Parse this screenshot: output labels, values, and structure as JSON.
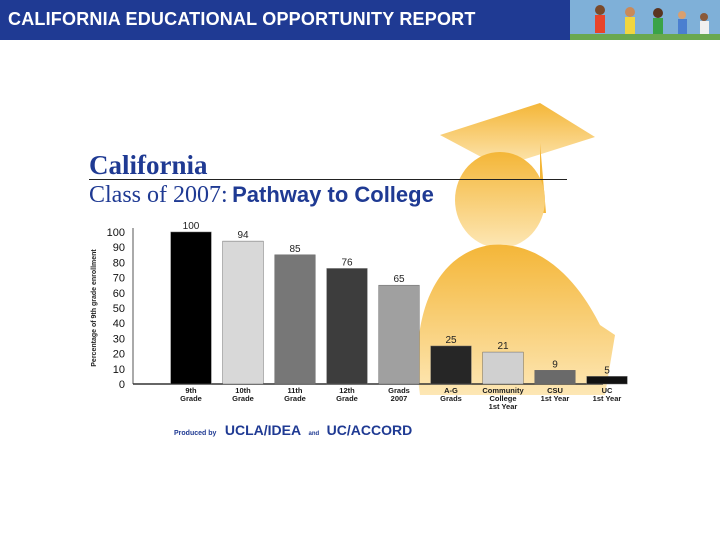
{
  "header": {
    "title": "CALIFORNIA EDUCATIONAL OPPORTUNITY REPORT"
  },
  "colors": {
    "banner": "#1f3a93",
    "title": "#1f3a93",
    "graduate_art": "#f7c96a"
  },
  "icons": {
    "banner_photo": "students-photo",
    "background_art": "graduate-silhouette-icon"
  },
  "chart_title": {
    "line1": "California",
    "line2_plain": "Class of 2007:",
    "line2_bold": "Pathway to College"
  },
  "credit": {
    "label": "Produced by",
    "org1": "UCLA/IDEA",
    "connector": "and",
    "org2": "UC/ACCORD"
  },
  "chart_data": {
    "type": "bar",
    "ylabel": "Percentage of 9th grade enrollment",
    "ylim": [
      0,
      100
    ],
    "yticks": [
      "0",
      "10",
      "20",
      "30",
      "40",
      "50",
      "60",
      "70",
      "80",
      "90",
      "100"
    ],
    "grid": false,
    "categories": [
      [
        "9th",
        "Grade"
      ],
      [
        "10th",
        "Grade"
      ],
      [
        "11th",
        "Grade"
      ],
      [
        "12th",
        "Grade"
      ],
      [
        "Grads",
        "2007"
      ],
      [
        "A-G",
        "Grads"
      ],
      [
        "Community",
        "College",
        "1st Year"
      ],
      [
        "CSU",
        "1st Year"
      ],
      [
        "UC",
        "1st Year"
      ]
    ],
    "values": [
      100,
      94,
      85,
      76,
      65,
      25,
      21,
      9,
      5
    ],
    "bar_colors": [
      "#000000",
      "#d8d8d8",
      "#777777",
      "#3d3d3d",
      "#a0a0a0",
      "#262626",
      "#d0d0d0",
      "#6a6a6a",
      "#111111"
    ]
  }
}
